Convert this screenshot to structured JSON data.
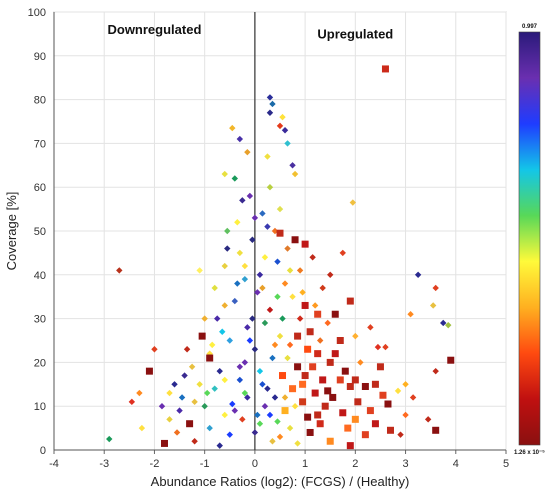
{
  "chart_data": {
    "type": "scatter",
    "xlabel": "Abundance Ratios (log2): (FCGS) / (Healthy)",
    "ylabel": "Coverage [%]",
    "xlim": [
      -4,
      5
    ],
    "ylim": [
      0,
      100
    ],
    "x_ticks": [
      "-4",
      "-3",
      "-2",
      "-1",
      "0",
      "1",
      "2",
      "3",
      "4",
      "5"
    ],
    "y_ticks": [
      "0",
      "10",
      "20",
      "30",
      "40",
      "50",
      "60",
      "70",
      "80",
      "90",
      "100"
    ],
    "grid": true,
    "annotations": [
      {
        "text": "Downregulated",
        "x": -2.0,
        "y": 95
      },
      {
        "text": "Upregulated",
        "x": 2.0,
        "y": 94
      }
    ],
    "reference_line_x": 0,
    "colorbar": {
      "max_label": "0.997",
      "min_label": "1.26 x 10⁻⁵",
      "colors": [
        "#2a1a7a",
        "#6a2fb0",
        "#1f3cff",
        "#13c6e8",
        "#58d858",
        "#fffa3a",
        "#ffb020",
        "#ff4a10",
        "#c01010",
        "#8a1010"
      ]
    },
    "legend_markers": "diamond = protein (low significance); square = high significance",
    "points": [
      [
        2.6,
        87,
        "#cc2a1a",
        "s"
      ],
      [
        -2.7,
        41,
        "#b8321c",
        "d"
      ],
      [
        0.3,
        80.5,
        "#2b2f9a",
        "d"
      ],
      [
        0.35,
        79,
        "#1a6aa8",
        "d"
      ],
      [
        0.3,
        77,
        "#2a2a8a",
        "d"
      ],
      [
        0.55,
        76,
        "#ffe23a",
        "d"
      ],
      [
        0.5,
        74,
        "#e43a1a",
        "d"
      ],
      [
        0.6,
        73,
        "#3a2a9a",
        "d"
      ],
      [
        -0.45,
        73.5,
        "#f2b62a",
        "d"
      ],
      [
        0.65,
        70,
        "#30c0d0",
        "d"
      ],
      [
        -0.3,
        71,
        "#4830a8",
        "d"
      ],
      [
        -0.15,
        68,
        "#e8a02a",
        "d"
      ],
      [
        0.25,
        67,
        "#f0e040",
        "d"
      ],
      [
        0.75,
        65,
        "#4a30a0",
        "d"
      ],
      [
        -0.6,
        63,
        "#e8e040",
        "d"
      ],
      [
        -0.4,
        62,
        "#1a9a5a",
        "d"
      ],
      [
        0.8,
        63,
        "#f2c030",
        "d"
      ],
      [
        0.3,
        60,
        "#b8d040",
        "d"
      ],
      [
        -0.1,
        58,
        "#6a2fb0",
        "d"
      ],
      [
        -0.25,
        57,
        "#3a2a90",
        "d"
      ],
      [
        0.5,
        55,
        "#e0e050",
        "d"
      ],
      [
        1.95,
        56.5,
        "#f0c040",
        "d"
      ],
      [
        0.15,
        54,
        "#2a6ac0",
        "d"
      ],
      [
        0.0,
        53,
        "#6a2fb0",
        "d"
      ],
      [
        -0.35,
        52,
        "#fff040",
        "d"
      ],
      [
        0.25,
        51,
        "#3a3ab0",
        "d"
      ],
      [
        0.4,
        50,
        "#f07020",
        "d"
      ],
      [
        0.5,
        49.5,
        "#c02a1a",
        "s"
      ],
      [
        -0.55,
        50,
        "#60c060",
        "d"
      ],
      [
        0.8,
        48,
        "#8a1010",
        "s"
      ],
      [
        1.0,
        47,
        "#c01818",
        "s"
      ],
      [
        -0.05,
        48,
        "#2a2a80",
        "d"
      ],
      [
        0.65,
        46,
        "#e07a2a",
        "d"
      ],
      [
        -0.3,
        45,
        "#f0e040",
        "d"
      ],
      [
        0.2,
        44,
        "#fff040",
        "d"
      ],
      [
        1.15,
        44,
        "#c02a1a",
        "d"
      ],
      [
        1.75,
        45,
        "#e04020",
        "d"
      ],
      [
        0.45,
        43,
        "#1a50d0",
        "d"
      ],
      [
        -0.6,
        42,
        "#e8d040",
        "d"
      ],
      [
        -1.1,
        41,
        "#fff060",
        "d"
      ],
      [
        0.9,
        41,
        "#f07a20",
        "d"
      ],
      [
        1.5,
        40,
        "#c02a1a",
        "d"
      ],
      [
        0.1,
        40,
        "#3a2aa0",
        "d"
      ],
      [
        3.25,
        40,
        "#2a2a90",
        "d"
      ],
      [
        -0.2,
        39,
        "#30a0d0",
        "d"
      ],
      [
        0.6,
        38,
        "#ff8a20",
        "d"
      ],
      [
        1.35,
        37,
        "#d03a1a",
        "d"
      ],
      [
        3.6,
        37,
        "#e04020",
        "d"
      ],
      [
        -0.8,
        37,
        "#e0e040",
        "d"
      ],
      [
        0.05,
        36,
        "#6a2fb0",
        "d"
      ],
      [
        0.75,
        35,
        "#ffe040",
        "d"
      ],
      [
        1.9,
        34,
        "#c02a1a",
        "s"
      ],
      [
        -0.4,
        34,
        "#3a60c0",
        "d"
      ],
      [
        1.2,
        33,
        "#ff9a20",
        "d"
      ],
      [
        0.3,
        32,
        "#c01818",
        "d"
      ],
      [
        1.6,
        31,
        "#8a1010",
        "s"
      ],
      [
        3.1,
        31,
        "#ff8a20",
        "d"
      ],
      [
        3.55,
        33,
        "#e8c040",
        "d"
      ],
      [
        -1.0,
        30,
        "#f0b030",
        "d"
      ],
      [
        0.9,
        30,
        "#d02a1a",
        "d"
      ],
      [
        0.2,
        29,
        "#2a9a5a",
        "d"
      ],
      [
        1.45,
        29,
        "#ff6a20",
        "d"
      ],
      [
        3.75,
        29,
        "#2a2a90",
        "d"
      ],
      [
        -0.15,
        28,
        "#4a2aa8",
        "d"
      ],
      [
        3.85,
        28.5,
        "#a0c040",
        "d"
      ],
      [
        1.1,
        27,
        "#c02a1a",
        "s"
      ],
      [
        -1.05,
        26,
        "#8a1010",
        "s"
      ],
      [
        0.5,
        26,
        "#f0e040",
        "d"
      ],
      [
        2.0,
        26,
        "#ffb030",
        "d"
      ],
      [
        -0.5,
        25,
        "#30a0e0",
        "d"
      ],
      [
        1.7,
        25,
        "#c02a1a",
        "s"
      ],
      [
        0.7,
        24,
        "#ff6a20",
        "d"
      ],
      [
        2.45,
        23.5,
        "#e03020",
        "d"
      ],
      [
        2.6,
        23.5,
        "#e04020",
        "d"
      ],
      [
        -2.0,
        23,
        "#e04020",
        "d"
      ],
      [
        -1.35,
        23,
        "#c02a1a",
        "d"
      ],
      [
        0.0,
        23,
        "#2a2a80",
        "d"
      ],
      [
        1.25,
        22,
        "#d02a1a",
        "s"
      ],
      [
        -0.9,
        22,
        "#ffe040",
        "d"
      ],
      [
        0.35,
        21,
        "#1a70c0",
        "d"
      ],
      [
        3.9,
        20.5,
        "#8a1010",
        "s"
      ],
      [
        -0.9,
        21,
        "#8a1010",
        "s"
      ],
      [
        1.5,
        20,
        "#c02a1a",
        "s"
      ],
      [
        2.1,
        20,
        "#ff8a20",
        "d"
      ],
      [
        -0.3,
        19,
        "#6a2fb0",
        "d"
      ],
      [
        0.85,
        19,
        "#8a1010",
        "s"
      ],
      [
        -2.1,
        18,
        "#8a1010",
        "s"
      ],
      [
        3.6,
        18,
        "#c02a1a",
        "d"
      ],
      [
        1.0,
        17,
        "#c02a1a",
        "s"
      ],
      [
        -1.4,
        17,
        "#3a2a90",
        "d"
      ],
      [
        0.55,
        17,
        "#ff4a10",
        "s"
      ],
      [
        1.35,
        16,
        "#c01818",
        "s"
      ],
      [
        1.7,
        16,
        "#e04020",
        "s"
      ],
      [
        -0.6,
        16,
        "#fff040",
        "d"
      ],
      [
        0.15,
        15,
        "#1a50d0",
        "d"
      ],
      [
        2.4,
        15,
        "#c02a1a",
        "s"
      ],
      [
        3.0,
        15,
        "#ffb020",
        "d"
      ],
      [
        -1.6,
        15,
        "#2a2a90",
        "d"
      ],
      [
        1.9,
        14.5,
        "#c02a1a",
        "s"
      ],
      [
        2.2,
        14.5,
        "#8a1010",
        "s"
      ],
      [
        0.75,
        14,
        "#ff6a20",
        "s"
      ],
      [
        -0.8,
        14,
        "#30c0c0",
        "d"
      ],
      [
        2.85,
        13.5,
        "#ffe040",
        "d"
      ],
      [
        1.2,
        13,
        "#c01818",
        "s"
      ],
      [
        -0.2,
        13,
        "#58d858",
        "d"
      ],
      [
        -2.3,
        13,
        "#ff8a20",
        "d"
      ],
      [
        3.15,
        12,
        "#e04020",
        "d"
      ],
      [
        1.55,
        12,
        "#8a1010",
        "s"
      ],
      [
        0.4,
        12,
        "#2a2a90",
        "d"
      ],
      [
        -2.45,
        11,
        "#e03020",
        "d"
      ],
      [
        -1.2,
        11,
        "#e8c040",
        "d"
      ],
      [
        2.05,
        11,
        "#c02a1a",
        "s"
      ],
      [
        0.95,
        11,
        "#d03a1a",
        "s"
      ],
      [
        -0.45,
        10.5,
        "#1a3cff",
        "d"
      ],
      [
        2.65,
        10.5,
        "#8a1010",
        "s"
      ],
      [
        0.2,
        10,
        "#6a2fb0",
        "d"
      ],
      [
        1.4,
        10,
        "#c02a1a",
        "s"
      ],
      [
        -1.0,
        10,
        "#2a9a5a",
        "d"
      ],
      [
        -1.5,
        9,
        "#4a2aa8",
        "d"
      ],
      [
        0.6,
        9,
        "#ffb020",
        "s"
      ],
      [
        2.3,
        9,
        "#e04020",
        "s"
      ],
      [
        1.75,
        8.5,
        "#c01818",
        "s"
      ],
      [
        -0.6,
        8,
        "#fff040",
        "d"
      ],
      [
        0.05,
        8,
        "#1a70c0",
        "d"
      ],
      [
        3.0,
        8,
        "#ff6a20",
        "d"
      ],
      [
        3.45,
        7,
        "#c02a1a",
        "d"
      ],
      [
        1.05,
        7.5,
        "#8a1010",
        "s"
      ],
      [
        -1.7,
        7,
        "#e8d040",
        "d"
      ],
      [
        -0.25,
        7,
        "#e04020",
        "d"
      ],
      [
        2.0,
        7,
        "#ff8a20",
        "s"
      ],
      [
        0.45,
        6.5,
        "#58d858",
        "d"
      ],
      [
        1.3,
        6,
        "#d02a1a",
        "s"
      ],
      [
        -1.3,
        6,
        "#8a1010",
        "s"
      ],
      [
        2.4,
        6,
        "#c01818",
        "s"
      ],
      [
        -0.9,
        5,
        "#30a0d0",
        "d"
      ],
      [
        0.7,
        5,
        "#e8e040",
        "d"
      ],
      [
        1.85,
        5,
        "#ff6a20",
        "s"
      ],
      [
        -2.25,
        5,
        "#ffe040",
        "d"
      ],
      [
        3.6,
        4.5,
        "#8a1010",
        "s"
      ],
      [
        2.7,
        4.5,
        "#c02a1a",
        "s"
      ],
      [
        -1.55,
        4,
        "#f07020",
        "d"
      ],
      [
        0.0,
        4,
        "#3a2a90",
        "d"
      ],
      [
        1.1,
        4,
        "#8a1010",
        "s"
      ],
      [
        -0.5,
        3.5,
        "#1a3cff",
        "d"
      ],
      [
        2.2,
        3.5,
        "#e04020",
        "s"
      ],
      [
        2.9,
        3.5,
        "#c02a1a",
        "d"
      ],
      [
        -2.9,
        2.5,
        "#1a9a5a",
        "d"
      ],
      [
        -1.2,
        2,
        "#c02a1a",
        "d"
      ],
      [
        0.35,
        2,
        "#e8c040",
        "d"
      ],
      [
        1.5,
        2,
        "#ff8a20",
        "s"
      ],
      [
        -1.8,
        1.5,
        "#8a1010",
        "s"
      ],
      [
        0.85,
        1.5,
        "#f0e040",
        "d"
      ],
      [
        -0.7,
        1,
        "#2a2a90",
        "d"
      ],
      [
        1.9,
        1,
        "#c01818",
        "s"
      ],
      [
        -0.05,
        30,
        "#2a2a80",
        "d"
      ],
      [
        -0.1,
        25,
        "#1a3cff",
        "d"
      ],
      [
        -0.2,
        20,
        "#6a2fb0",
        "d"
      ],
      [
        0.1,
        18,
        "#13c6e8",
        "d"
      ],
      [
        -0.3,
        16,
        "#1a50d0",
        "d"
      ],
      [
        0.25,
        14,
        "#2a2a90",
        "d"
      ],
      [
        -0.15,
        12,
        "#3a2aa0",
        "d"
      ],
      [
        0.1,
        6,
        "#58d858",
        "d"
      ],
      [
        -0.4,
        9,
        "#6a2fb0",
        "d"
      ],
      [
        0.3,
        8,
        "#1a3cff",
        "d"
      ],
      [
        -0.7,
        18,
        "#2a2a90",
        "d"
      ],
      [
        -0.75,
        30,
        "#4a2aa8",
        "d"
      ],
      [
        -0.65,
        27,
        "#13c6e8",
        "d"
      ],
      [
        -0.35,
        38,
        "#1a70c0",
        "d"
      ],
      [
        -0.55,
        46,
        "#2a2a80",
        "d"
      ],
      [
        0.45,
        35,
        "#58d858",
        "d"
      ],
      [
        0.55,
        30,
        "#1a9a5a",
        "d"
      ],
      [
        0.65,
        21,
        "#e8e040",
        "d"
      ],
      [
        0.4,
        24,
        "#ff8a20",
        "d"
      ],
      [
        0.85,
        26,
        "#c02a1a",
        "s"
      ],
      [
        1.05,
        23,
        "#ff4a10",
        "s"
      ],
      [
        1.15,
        19,
        "#e04020",
        "s"
      ],
      [
        1.3,
        25,
        "#f07020",
        "d"
      ],
      [
        1.6,
        22,
        "#c01818",
        "s"
      ],
      [
        1.8,
        18,
        "#8a1010",
        "s"
      ],
      [
        2.0,
        16,
        "#c02a1a",
        "s"
      ],
      [
        0.95,
        15,
        "#ff6a20",
        "s"
      ],
      [
        1.45,
        13.5,
        "#8a1010",
        "s"
      ],
      [
        0.6,
        12,
        "#f0b030",
        "d"
      ],
      [
        0.8,
        10,
        "#ffe040",
        "d"
      ],
      [
        1.25,
        8,
        "#c02a1a",
        "s"
      ],
      [
        0.5,
        3,
        "#ff8a20",
        "d"
      ],
      [
        -0.95,
        13,
        "#58d858",
        "d"
      ],
      [
        -1.1,
        15,
        "#f0e040",
        "d"
      ],
      [
        -0.85,
        24,
        "#fff040",
        "d"
      ],
      [
        -0.6,
        33,
        "#f0b030",
        "d"
      ],
      [
        -0.2,
        42,
        "#ffe040",
        "d"
      ],
      [
        0.15,
        37,
        "#e8a02a",
        "d"
      ],
      [
        0.7,
        41,
        "#e8e040",
        "d"
      ],
      [
        0.95,
        36,
        "#ffb020",
        "d"
      ],
      [
        1.25,
        31,
        "#e04020",
        "s"
      ],
      [
        1.0,
        33,
        "#c01818",
        "s"
      ],
      [
        2.3,
        28,
        "#e04020",
        "d"
      ],
      [
        2.5,
        19,
        "#c02a1a",
        "s"
      ],
      [
        2.55,
        12.5,
        "#e04020",
        "s"
      ],
      [
        -1.25,
        19,
        "#e8c040",
        "d"
      ],
      [
        -1.45,
        12,
        "#1a70c0",
        "d"
      ],
      [
        -1.85,
        10,
        "#6a2fb0",
        "d"
      ],
      [
        -1.7,
        13,
        "#ffe040",
        "d"
      ]
    ]
  }
}
